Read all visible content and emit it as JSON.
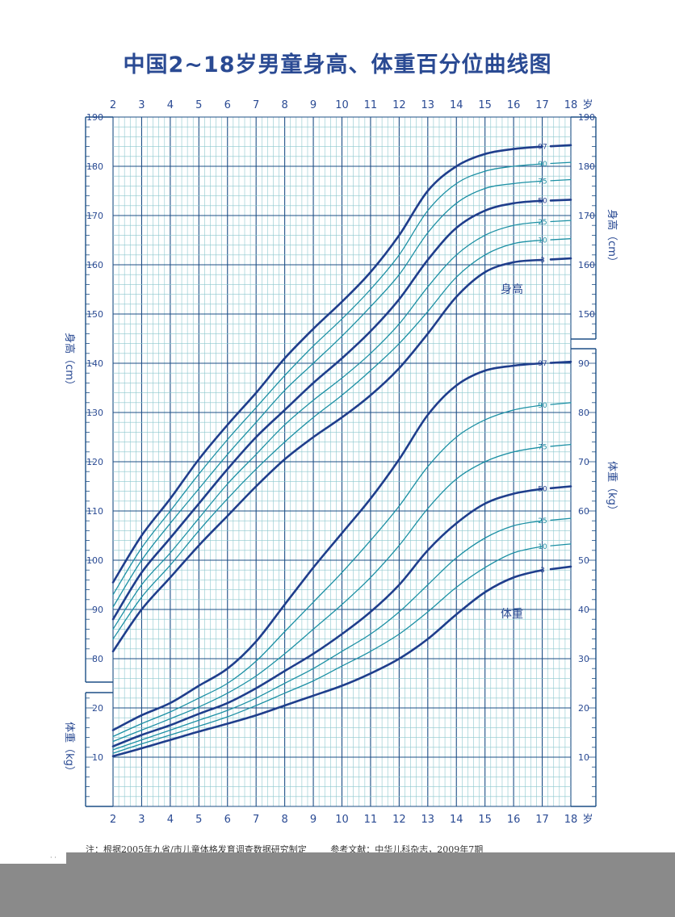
{
  "title": "中国2~18岁男童身高、体重百分位曲线图",
  "colors": {
    "dark_line": "#1f3e8c",
    "light_line": "#1c90a4",
    "grid_fine": "#8cc7ce",
    "grid_mid": "#55a8b6",
    "grid_major": "#1d4f86",
    "background": "#ffffff",
    "text": "#2a4a93"
  },
  "chart_data": [
    {
      "type": "line",
      "name": "身高",
      "series_label": "身高",
      "xlabel": "岁",
      "ylabel": "身高（cm）",
      "x_ticks": [
        "2",
        "3",
        "4",
        "5",
        "6",
        "7",
        "8",
        "9",
        "10",
        "11",
        "12",
        "13",
        "14",
        "15",
        "16",
        "17",
        "18"
      ],
      "xlim": [
        2,
        18
      ],
      "ylim": [
        80,
        190
      ],
      "y_ticks_left": [
        "80",
        "90",
        "100",
        "110",
        "120",
        "130",
        "140",
        "150",
        "160",
        "170",
        "180",
        "190"
      ],
      "y_ticks_right": [
        "150",
        "160",
        "170",
        "180",
        "190"
      ],
      "x": [
        2,
        3,
        4,
        5,
        6,
        7,
        8,
        9,
        10,
        11,
        12,
        13,
        14,
        15,
        16,
        17,
        18
      ],
      "series": [
        {
          "name": "97",
          "style": "dark",
          "values": [
            95.5,
            105,
            112.5,
            120.5,
            127.5,
            134,
            141,
            147,
            152.5,
            158.5,
            166,
            175,
            180,
            182.5,
            183.5,
            184,
            184.3
          ]
        },
        {
          "name": "90",
          "style": "light",
          "values": [
            93,
            102.5,
            110,
            117.5,
            124.5,
            131,
            137.5,
            143.5,
            149,
            155,
            162,
            171,
            176.5,
            179,
            180,
            180.5,
            180.8
          ]
        },
        {
          "name": "75",
          "style": "light",
          "values": [
            90.5,
            100,
            107.5,
            114.5,
            121.5,
            128,
            134.5,
            140,
            145.5,
            151.5,
            158,
            166.5,
            172.5,
            175.5,
            176.5,
            177,
            177.3
          ]
        },
        {
          "name": "50",
          "style": "dark",
          "values": [
            88,
            97.5,
            104.5,
            111.5,
            118.5,
            125,
            130.5,
            136,
            141,
            146.5,
            153,
            161,
            167.5,
            171,
            172.5,
            173,
            173.2
          ]
        },
        {
          "name": "25",
          "style": "light",
          "values": [
            86,
            95,
            101.5,
            108.5,
            115.5,
            121.5,
            127.5,
            132.5,
            137,
            142,
            148,
            155.5,
            162,
            166,
            168,
            168.7,
            169
          ]
        },
        {
          "name": "10",
          "style": "light",
          "values": [
            84,
            92.5,
            99,
            106,
            112.5,
            118.5,
            124,
            129,
            133.5,
            138.5,
            144,
            150.5,
            157.5,
            162,
            164.3,
            165,
            165.3
          ]
        },
        {
          "name": "3",
          "style": "dark",
          "values": [
            81.5,
            90,
            96.5,
            103,
            109,
            115,
            120.5,
            125,
            129,
            133.5,
            139,
            146,
            153.5,
            158.5,
            160.5,
            161,
            161.3
          ]
        }
      ]
    },
    {
      "type": "line",
      "name": "体重",
      "series_label": "体重",
      "xlabel": "岁",
      "ylabel": "体重（kg）",
      "x_ticks": [
        "2",
        "3",
        "4",
        "5",
        "6",
        "7",
        "8",
        "9",
        "10",
        "11",
        "12",
        "13",
        "14",
        "15",
        "16",
        "17",
        "18"
      ],
      "xlim": [
        2,
        18
      ],
      "ylim": [
        0,
        100
      ],
      "y_ticks_left": [
        "10",
        "20"
      ],
      "y_ticks_right": [
        "10",
        "20",
        "30",
        "40",
        "50",
        "60",
        "70",
        "80",
        "90"
      ],
      "x": [
        2,
        3,
        4,
        5,
        6,
        7,
        8,
        9,
        10,
        11,
        12,
        13,
        14,
        15,
        16,
        17,
        18
      ],
      "series": [
        {
          "name": "97",
          "style": "dark",
          "values": [
            15.5,
            18.5,
            21,
            24.5,
            28,
            33.5,
            41,
            48.5,
            55.5,
            62.5,
            70.5,
            79.5,
            85.5,
            88.5,
            89.5,
            90,
            90.3
          ]
        },
        {
          "name": "90",
          "style": "light",
          "values": [
            14.2,
            16.8,
            19.2,
            22,
            25,
            29.5,
            35.5,
            41.5,
            47.5,
            54,
            61,
            69,
            75,
            78.5,
            80.5,
            81.5,
            82
          ]
        },
        {
          "name": "75",
          "style": "light",
          "values": [
            13.2,
            15.5,
            17.8,
            20.2,
            23,
            26.5,
            31,
            36,
            41,
            46.5,
            53,
            60.5,
            66.5,
            70,
            72,
            73,
            73.5
          ]
        },
        {
          "name": "50",
          "style": "dark",
          "values": [
            12.2,
            14.5,
            16.5,
            18.8,
            21,
            24,
            27.5,
            31,
            35,
            39.5,
            45,
            52,
            57.5,
            61.5,
            63.5,
            64.5,
            65
          ]
        },
        {
          "name": "25",
          "style": "light",
          "values": [
            11.5,
            13.5,
            15.5,
            17.5,
            19.5,
            22,
            25,
            28,
            31.5,
            35,
            39.5,
            45,
            50.5,
            54.5,
            57,
            58,
            58.5
          ]
        },
        {
          "name": "10",
          "style": "light",
          "values": [
            10.8,
            12.7,
            14.5,
            16.3,
            18.2,
            20.5,
            23,
            25.5,
            28.5,
            31.5,
            35,
            39.5,
            44.5,
            48.5,
            51.5,
            52.8,
            53.3
          ]
        },
        {
          "name": "3",
          "style": "dark",
          "values": [
            10.2,
            11.8,
            13.5,
            15.2,
            16.8,
            18.5,
            20.5,
            22.5,
            24.5,
            27,
            30,
            34,
            39,
            43.5,
            46.5,
            48,
            48.7
          ]
        }
      ]
    }
  ],
  "footnote": {
    "note": "注：根据2005年九省/市儿童体格发育调查数据研究制定",
    "reference": "参考文献：中华儿科杂志，2009年7期"
  }
}
